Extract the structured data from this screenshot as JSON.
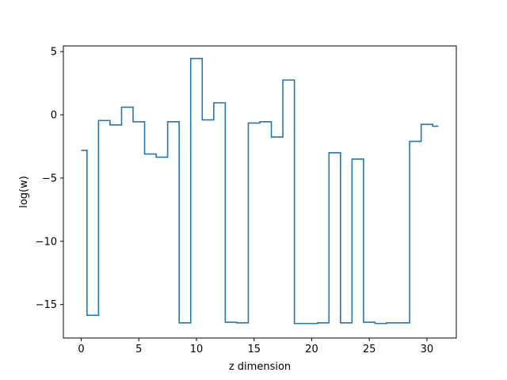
{
  "chart_data": {
    "type": "line",
    "drawstyle": "steps-mid",
    "xlabel": "z dimension",
    "ylabel": "log(w)",
    "xlim": [
      -1.55,
      32.55
    ],
    "ylim": [
      -17.65,
      5.45
    ],
    "xticks": [
      0,
      5,
      10,
      15,
      20,
      25,
      30
    ],
    "yticks": [
      5,
      0,
      -5,
      -10,
      -15
    ],
    "ytick_labels": [
      "5",
      "0",
      "−5",
      "−10",
      "−15"
    ],
    "grid": false,
    "line_color": "#1f77b4",
    "x": [
      0,
      1,
      2,
      3,
      4,
      5,
      6,
      7,
      8,
      9,
      10,
      11,
      12,
      13,
      14,
      15,
      16,
      17,
      18,
      19,
      20,
      21,
      22,
      23,
      24,
      25,
      26,
      27,
      28,
      29,
      30,
      31
    ],
    "y": [
      -2.8,
      -15.85,
      -0.45,
      -0.8,
      0.6,
      -0.55,
      -3.1,
      -3.35,
      -0.55,
      -16.45,
      4.45,
      -0.4,
      0.95,
      -16.4,
      -16.45,
      -0.65,
      -0.55,
      -1.75,
      2.75,
      -16.5,
      -16.5,
      -16.45,
      -3.0,
      -16.45,
      -3.5,
      -16.4,
      -16.5,
      -16.45,
      -16.45,
      -2.1,
      -0.75,
      -0.9
    ]
  }
}
